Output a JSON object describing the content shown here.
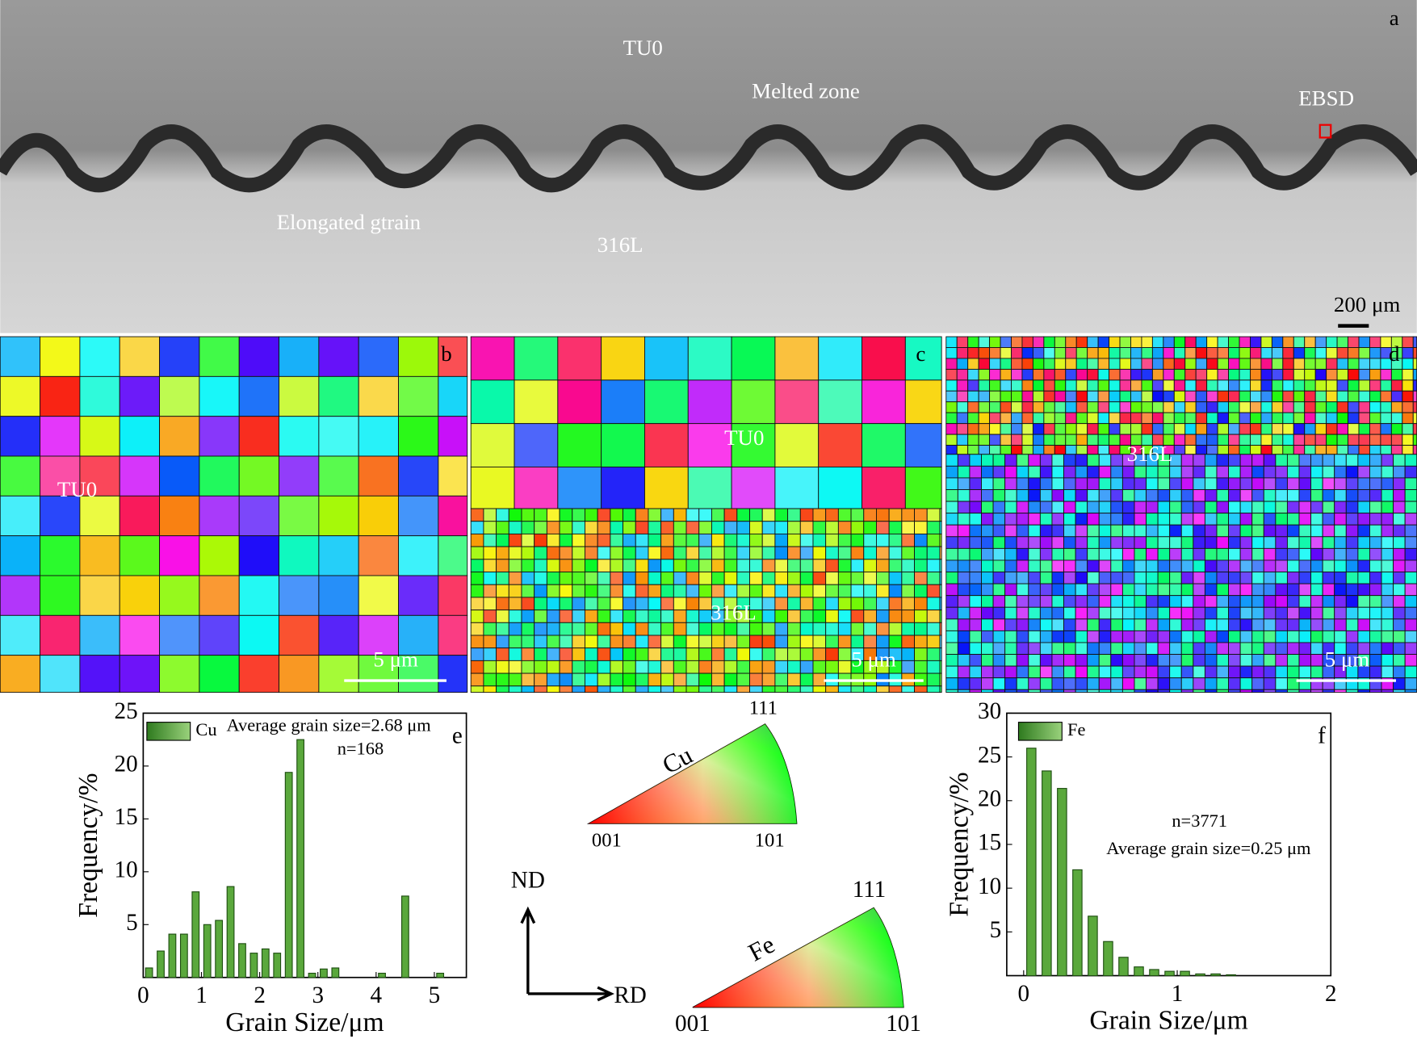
{
  "panel_a": {
    "label": "a",
    "tu0": "TU0",
    "melted_zone": "Melted zone",
    "ebsd": "EBSD",
    "elongated": "Elongated gtrain",
    "ss": "316L",
    "scale_bar": "200 μm"
  },
  "panel_b": {
    "label": "b",
    "tu0": "TU0",
    "scale_bar": "5 μm"
  },
  "panel_c": {
    "label": "c",
    "tu0": "TU0",
    "ss": "316L",
    "scale_bar": "5 μm"
  },
  "panel_d": {
    "label": "d",
    "ss": "316L",
    "scale_bar": "5 μm"
  },
  "ipf": {
    "cu": {
      "name": "Cu",
      "corners": [
        "001",
        "101",
        "111"
      ]
    },
    "fe": {
      "name": "Fe",
      "corners": [
        "001",
        "101",
        "111"
      ]
    },
    "nd": "ND",
    "rd": "RD"
  },
  "chart_data": [
    {
      "type": "bar",
      "label": "e",
      "x_label": "Grain Size/μm",
      "y_label": "Frequency/%",
      "annotations": [
        "Average grain size=2.68 μm",
        "n=168"
      ],
      "x": [
        0.1,
        0.3,
        0.5,
        0.7,
        0.9,
        1.1,
        1.3,
        1.5,
        1.7,
        1.9,
        2.1,
        2.3,
        2.5,
        2.7,
        2.9,
        3.1,
        3.3,
        4.1,
        4.5,
        5.1
      ],
      "series": [
        {
          "name": "Cu",
          "color": "#5aa83c",
          "values": [
            0.9,
            2.5,
            4.1,
            4.1,
            8.1,
            5.0,
            5.4,
            8.6,
            3.2,
            2.3,
            2.7,
            2.3,
            19.4,
            22.5,
            0.4,
            0.8,
            0.9,
            0.4,
            7.7,
            0.4
          ]
        }
      ],
      "xlim": [
        0,
        5.55
      ],
      "xticks": [
        0,
        1,
        2,
        3,
        4,
        5
      ],
      "ylim": [
        0,
        25
      ],
      "yticks": [
        5,
        10,
        15,
        20,
        25
      ]
    },
    {
      "type": "bar",
      "label": "f",
      "x_label": "Grain Size/μm",
      "y_label": "Frequency/%",
      "annotations": [
        "n=3771",
        "Average grain size=0.25 μm"
      ],
      "x": [
        0.05,
        0.15,
        0.25,
        0.35,
        0.45,
        0.55,
        0.65,
        0.75,
        0.85,
        0.95,
        1.05,
        1.15,
        1.25,
        1.35
      ],
      "series": [
        {
          "name": "Fe",
          "color": "#5aa83c",
          "values": [
            26.0,
            23.4,
            21.4,
            12.1,
            6.8,
            3.9,
            2.1,
            1.0,
            0.7,
            0.5,
            0.5,
            0.2,
            0.2,
            0.1
          ]
        }
      ],
      "xlim": [
        -0.11,
        2.0
      ],
      "xticks": [
        0,
        1,
        2
      ],
      "ylim": [
        0,
        30
      ],
      "yticks": [
        5,
        10,
        15,
        20,
        25,
        30
      ]
    }
  ]
}
